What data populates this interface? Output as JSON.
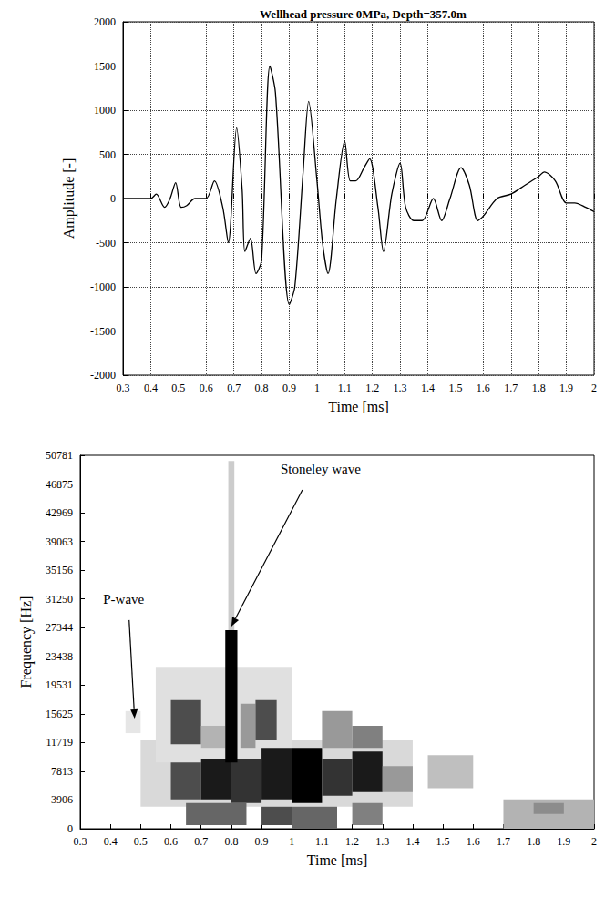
{
  "chart_data": [
    {
      "type": "line",
      "title": "Wellhead pressure 0MPa, Depth=357.0m",
      "x_label": "Time [ms]",
      "y_label": "Amplitude [-]",
      "x": [
        0.3,
        0.35,
        0.4,
        0.42,
        0.45,
        0.47,
        0.49,
        0.51,
        0.53,
        0.56,
        0.6,
        0.63,
        0.66,
        0.68,
        0.71,
        0.73,
        0.74,
        0.76,
        0.78,
        0.8,
        0.83,
        0.85,
        0.9,
        0.92,
        0.95,
        0.97,
        1,
        1.02,
        1.04,
        1.07,
        1.1,
        1.12,
        1.14,
        1.17,
        1.19,
        1.22,
        1.24,
        1.27,
        1.3,
        1.32,
        1.35,
        1.38,
        1.42,
        1.45,
        1.48,
        1.52,
        1.55,
        1.58,
        1.6,
        1.65,
        1.7,
        1.75,
        1.8,
        1.82,
        1.86,
        1.9,
        1.93,
        1.97,
        2
      ],
      "values": [
        0,
        0,
        0,
        50,
        -100,
        0,
        180,
        -100,
        -80,
        0,
        0,
        200,
        -100,
        -500,
        800,
        100,
        -600,
        -450,
        -850,
        -700,
        1500,
        1200,
        -1200,
        -1000,
        300,
        1100,
        200,
        -500,
        -850,
        0,
        650,
        200,
        200,
        350,
        450,
        -100,
        -600,
        50,
        400,
        -100,
        -250,
        -250,
        0,
        -250,
        0,
        350,
        150,
        -250,
        -200,
        0,
        50,
        150,
        250,
        300,
        200,
        -50,
        -50,
        -100,
        -150
      ],
      "color": "#000000",
      "xlim": [
        0.3,
        2
      ],
      "xticks": [
        0.3,
        0.4,
        0.5,
        0.6,
        0.7,
        0.8,
        0.9,
        1,
        1.1,
        1.2,
        1.3,
        1.4,
        1.5,
        1.6,
        1.7,
        1.8,
        1.9,
        2
      ],
      "ylim": [
        -2000,
        2000
      ],
      "yticks": [
        -2000,
        -1500,
        -1000,
        -500,
        0,
        500,
        1000,
        1500,
        2000
      ],
      "grid": true
    },
    {
      "type": "heatmap",
      "x_label": "Time [ms]",
      "y_label": "Frequency [Hz]",
      "color": "#000000",
      "xlim": [
        0.3,
        2
      ],
      "xticks": [
        0.3,
        0.4,
        0.5,
        0.6,
        0.7,
        0.8,
        0.9,
        1,
        1.1,
        1.2,
        1.3,
        1.4,
        1.5,
        1.6,
        1.7,
        1.8,
        1.9,
        2
      ],
      "ylim": [
        0,
        50781
      ],
      "yticks": [
        0,
        3906,
        7813,
        11719,
        15625,
        19531,
        23438,
        27344,
        31250,
        35156,
        39063,
        42969,
        46875,
        50781
      ],
      "grid": false,
      "zlim": [
        0,
        1
      ],
      "cells": [
        [
          0.5,
          1.4,
          3000,
          12000,
          0.15
        ],
        [
          0.55,
          1.0,
          9000,
          22000,
          0.12
        ],
        [
          0.45,
          0.5,
          13000,
          16000,
          0.1
        ],
        [
          0.6,
          0.7,
          4000,
          9000,
          0.7
        ],
        [
          0.7,
          0.8,
          4000,
          9500,
          0.9
        ],
        [
          0.8,
          0.9,
          3500,
          9500,
          0.8
        ],
        [
          0.9,
          1.0,
          4000,
          11000,
          0.9
        ],
        [
          1.0,
          1.1,
          3500,
          11000,
          1.0
        ],
        [
          1.1,
          1.2,
          4500,
          9500,
          0.8
        ],
        [
          1.2,
          1.3,
          5000,
          10500,
          0.9
        ],
        [
          1.3,
          1.4,
          5000,
          8500,
          0.4
        ],
        [
          0.65,
          0.85,
          500,
          3500,
          0.6
        ],
        [
          0.9,
          1.0,
          500,
          3000,
          0.7
        ],
        [
          1.0,
          1.15,
          0,
          3000,
          0.6
        ],
        [
          1.2,
          1.3,
          500,
          3500,
          0.5
        ],
        [
          0.6,
          0.7,
          11500,
          17500,
          0.7
        ],
        [
          0.7,
          0.78,
          11000,
          14000,
          0.3
        ],
        [
          0.83,
          0.88,
          11000,
          17000,
          0.4
        ],
        [
          0.88,
          0.95,
          12000,
          17500,
          0.7
        ],
        [
          1.1,
          1.2,
          11000,
          16000,
          0.4
        ],
        [
          1.2,
          1.3,
          11000,
          14000,
          0.5
        ],
        [
          0.79,
          0.81,
          27000,
          50000,
          0.2
        ],
        [
          0.78,
          0.82,
          9000,
          27000,
          1.0
        ],
        [
          1.45,
          1.6,
          5500,
          10000,
          0.25
        ],
        [
          1.7,
          2.0,
          0,
          4000,
          0.3
        ],
        [
          1.8,
          1.9,
          2000,
          3500,
          0.45
        ]
      ],
      "annotations": [
        {
          "text": "P-wave",
          "x": 0.48,
          "y": 15000
        },
        {
          "text": "Stoneley wave",
          "x": 0.8,
          "y": 27500
        }
      ]
    }
  ]
}
